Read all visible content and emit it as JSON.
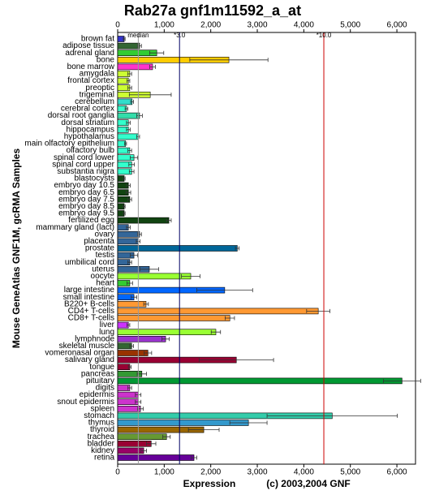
{
  "chart_data": {
    "type": "hbar",
    "title": "Rab27a gnf1m11592_a_at",
    "y_label": "Mouse GeneAtlas GNF1M, gcRMA Samples",
    "x_label": "Expression",
    "copyright": "(c) 2003,2004 GNF",
    "xlim": [
      0,
      6400
    ],
    "xticks": [
      0,
      {
        "value": 1000,
        "label": "1,000"
      },
      {
        "value": 2000,
        "label": "2,000"
      },
      {
        "value": 3000,
        "label": "3,000"
      },
      {
        "value": 4000,
        "label": "4,000"
      },
      {
        "value": 5000,
        "label": "5,000"
      },
      {
        "value": 6000,
        "label": "6,000"
      }
    ],
    "reference_lines": [
      {
        "label": "median",
        "value": 443,
        "color": "#999999"
      },
      {
        "label": "*3.0",
        "value": 1329,
        "color": "#000066"
      },
      {
        "label": "*10.0",
        "value": 4430,
        "color": "#cc0000"
      }
    ],
    "categories": [
      "brown fat",
      "adipose tissue",
      "adrenal gland",
      "bone",
      "bone marrow",
      "amygdala",
      "frontal cortex",
      "preoptic",
      "trigeminal",
      "cerebellum",
      "cerebral cortex",
      "dorsal root ganglia",
      "dorsal striatum",
      "hippocampus",
      "hypothalamus",
      "main olfactory epithelium",
      "olfactory bulb",
      "spinal cord lower",
      "spinal cord upper",
      "substantia nigra",
      "blastocysts",
      "embryo day 10.5",
      "embryo day 6.5",
      "embryo day 7.5",
      "embryo day 8.5",
      "embryo day 9.5",
      "fertilized egg",
      "mammary gland (lact)",
      "ovary",
      "placenta",
      "prostate",
      "testis",
      "umbilical cord",
      "uterus",
      "oocyte",
      "heart",
      "large intestine",
      "small intestine",
      "B220+ B-cells",
      "CD4+ T-cells",
      "CD8+ T-cells",
      "liver",
      "lung",
      "lymphnode",
      "skeletal muscle",
      "vomeronasal organ",
      "salivary gland",
      "tongue",
      "pancreas",
      "pituitary",
      "digits",
      "epidermis",
      "snout epidermis",
      "spleen",
      "stomach",
      "thymus",
      "thyroid",
      "trachea",
      "bladder",
      "kidney",
      "retina"
    ],
    "values": [
      140,
      470,
      840,
      2390,
      750,
      260,
      230,
      260,
      700,
      310,
      190,
      470,
      230,
      230,
      440,
      170,
      260,
      350,
      300,
      300,
      140,
      230,
      230,
      260,
      140,
      140,
      1100,
      230,
      470,
      440,
      2570,
      350,
      260,
      680,
      1570,
      260,
      2300,
      350,
      610,
      4310,
      2410,
      230,
      2110,
      1030,
      300,
      650,
      2550,
      260,
      520,
      6110,
      260,
      440,
      440,
      490,
      4610,
      2810,
      1850,
      1050,
      720,
      560,
      1640
    ],
    "errors": [
      20,
      40,
      150,
      840,
      60,
      40,
      30,
      40,
      450,
      30,
      30,
      60,
      40,
      40,
      30,
      20,
      40,
      80,
      60,
      50,
      20,
      40,
      50,
      40,
      20,
      20,
      50,
      40,
      40,
      40,
      40,
      80,
      40,
      200,
      200,
      60,
      600,
      60,
      50,
      250,
      100,
      30,
      100,
      80,
      40,
      80,
      800,
      30,
      100,
      400,
      40,
      60,
      60,
      60,
      1400,
      400,
      330,
      80,
      100,
      60,
      60
    ],
    "colors": [
      "#3333cc",
      "#336633",
      "#33cc33",
      "#ffcc00",
      "#ff33cc",
      "#ccff33",
      "#ccff33",
      "#ccff33",
      "#ccff33",
      "#33ddcc",
      "#33ffcc",
      "#33ddaa",
      "#33ffcc",
      "#33ffcc",
      "#33ffcc",
      "#33ffcc",
      "#33ffcc",
      "#33ffcc",
      "#33ffcc",
      "#33ffcc",
      "#114411",
      "#114411",
      "#114411",
      "#114411",
      "#114411",
      "#114411",
      "#114411",
      "#336699",
      "#336699",
      "#336699",
      "#006699",
      "#336699",
      "#336699",
      "#336699",
      "#99ff33",
      "#33cc33",
      "#0066ff",
      "#0066ff",
      "#ff9933",
      "#ff9933",
      "#ff9933",
      "#cc33ff",
      "#99ff33",
      "#9933cc",
      "#336633",
      "#993300",
      "#990033",
      "#990033",
      "#339933",
      "#009933",
      "#cc33cc",
      "#cc33cc",
      "#cc33cc",
      "#cc33cc",
      "#33ccaa",
      "#3399cc",
      "#996600",
      "#669933",
      "#990033",
      "#990066",
      "#660099"
    ]
  }
}
